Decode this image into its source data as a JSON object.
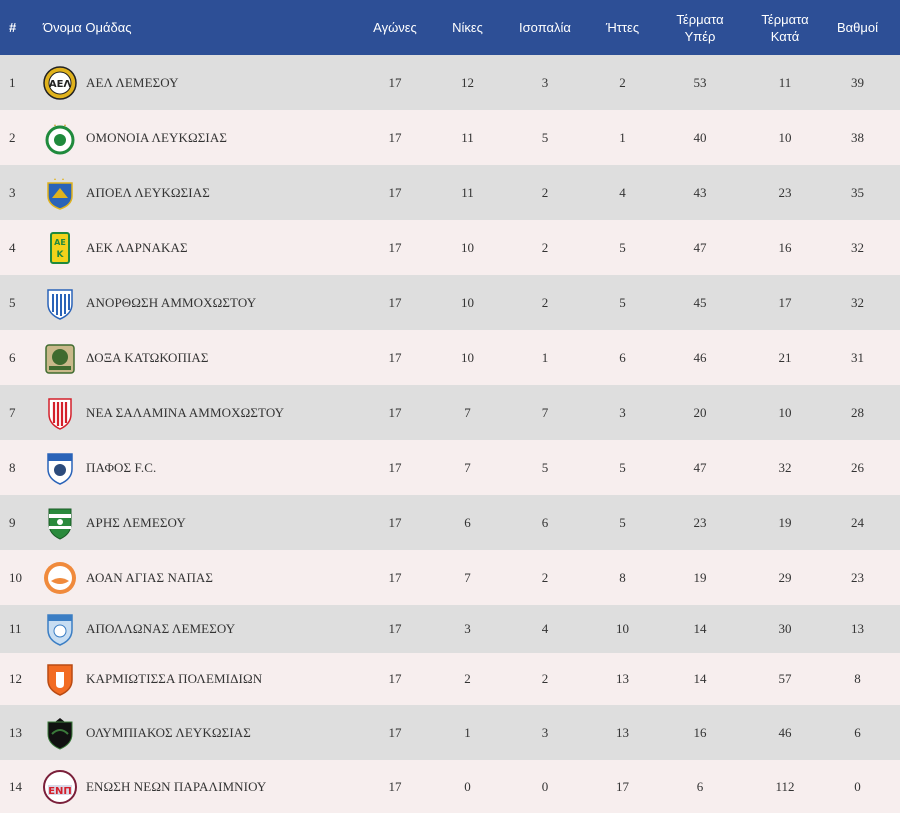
{
  "header": {
    "pos": "#",
    "team": "Όνομα Ομάδας",
    "games": "Αγώνες",
    "wins": "Νίκες",
    "draws": "Ισοπαλία",
    "losses": "Ήττες",
    "goals_for_1": "Τέρματα",
    "goals_for_2": "Υπέρ",
    "goals_against_1": "Τέρματα",
    "goals_against_2": "Κατά",
    "points": "Βαθμοί"
  },
  "colors": {
    "header_bg": "#2d4f96",
    "row_odd": "#dedede",
    "row_even": "#f7eeee"
  },
  "rows": [
    {
      "pos": "1",
      "team": "ΑΕΛ ΛΕΜΕΣΟΥ",
      "crest_icon": "ael-crest-icon",
      "games": "17",
      "wins": "12",
      "draws": "3",
      "losses": "2",
      "gf": "53",
      "ga": "11",
      "pts": "39"
    },
    {
      "pos": "2",
      "team": "ΟΜΟΝΟΙΑ ΛΕΥΚΩΣΙΑΣ",
      "crest_icon": "omonoia-crest-icon",
      "games": "17",
      "wins": "11",
      "draws": "5",
      "losses": "1",
      "gf": "40",
      "ga": "10",
      "pts": "38"
    },
    {
      "pos": "3",
      "team": "ΑΠΟΕΛ ΛΕΥΚΩΣΙΑΣ",
      "crest_icon": "apoel-crest-icon",
      "games": "17",
      "wins": "11",
      "draws": "2",
      "losses": "4",
      "gf": "43",
      "ga": "23",
      "pts": "35"
    },
    {
      "pos": "4",
      "team": "ΑΕΚ ΛΑΡΝΑΚΑΣ",
      "crest_icon": "aek-crest-icon",
      "games": "17",
      "wins": "10",
      "draws": "2",
      "losses": "5",
      "gf": "47",
      "ga": "16",
      "pts": "32"
    },
    {
      "pos": "5",
      "team": "ΑΝΟΡΘΩΣΗ ΑΜΜΟΧΩΣΤΟΥ",
      "crest_icon": "anorthosis-crest-icon",
      "games": "17",
      "wins": "10",
      "draws": "2",
      "losses": "5",
      "gf": "45",
      "ga": "17",
      "pts": "32"
    },
    {
      "pos": "6",
      "team": "ΔΟΞΑ ΚΑΤΩΚΟΠΙΑΣ",
      "crest_icon": "doxa-crest-icon",
      "games": "17",
      "wins": "10",
      "draws": "1",
      "losses": "6",
      "gf": "46",
      "ga": "21",
      "pts": "31"
    },
    {
      "pos": "7",
      "team": "ΝΕΑ ΣΑΛΑΜΙΝΑ ΑΜΜΟΧΩΣΤΟΥ",
      "crest_icon": "nea-salamina-crest-icon",
      "games": "17",
      "wins": "7",
      "draws": "7",
      "losses": "3",
      "gf": "20",
      "ga": "10",
      "pts": "28"
    },
    {
      "pos": "8",
      "team": "ΠΑΦΟΣ F.C.",
      "crest_icon": "pafos-crest-icon",
      "games": "17",
      "wins": "7",
      "draws": "5",
      "losses": "5",
      "gf": "47",
      "ga": "32",
      "pts": "26"
    },
    {
      "pos": "9",
      "team": "ΑΡΗΣ ΛΕΜΕΣΟΥ",
      "crest_icon": "aris-crest-icon",
      "games": "17",
      "wins": "6",
      "draws": "6",
      "losses": "5",
      "gf": "23",
      "ga": "19",
      "pts": "24"
    },
    {
      "pos": "10",
      "team": "ΑΟΑΝ ΑΓΙΑΣ ΝΑΠΑΣ",
      "crest_icon": "aoan-crest-icon",
      "games": "17",
      "wins": "7",
      "draws": "2",
      "losses": "8",
      "gf": "19",
      "ga": "29",
      "pts": "23"
    },
    {
      "pos": "11",
      "team": "ΑΠΟΛΛΩΝΑΣ ΛΕΜΕΣΟΥ",
      "crest_icon": "apollon-crest-icon",
      "games": "17",
      "wins": "3",
      "draws": "4",
      "losses": "10",
      "gf": "14",
      "ga": "30",
      "pts": "13"
    },
    {
      "pos": "12",
      "team": "ΚΑΡΜΙΩΤΙΣΣΑ ΠΟΛΕΜΙΔΙΩΝ",
      "crest_icon": "karmiotissa-crest-icon",
      "games": "17",
      "wins": "2",
      "draws": "2",
      "losses": "13",
      "gf": "14",
      "ga": "57",
      "pts": "8"
    },
    {
      "pos": "13",
      "team": "ΟΛΥΜΠΙΑΚΟΣ ΛΕΥΚΩΣΙΑΣ",
      "crest_icon": "olympiakos-crest-icon",
      "games": "17",
      "wins": "1",
      "draws": "3",
      "losses": "13",
      "gf": "16",
      "ga": "46",
      "pts": "6"
    },
    {
      "pos": "14",
      "team": "ΕΝΩΣΗ ΝΕΩΝ ΠΑΡΑΛΙΜΝΙΟΥ",
      "crest_icon": "enp-crest-icon",
      "games": "17",
      "wins": "0",
      "draws": "0",
      "losses": "17",
      "gf": "6",
      "ga": "112",
      "pts": "0"
    }
  ]
}
